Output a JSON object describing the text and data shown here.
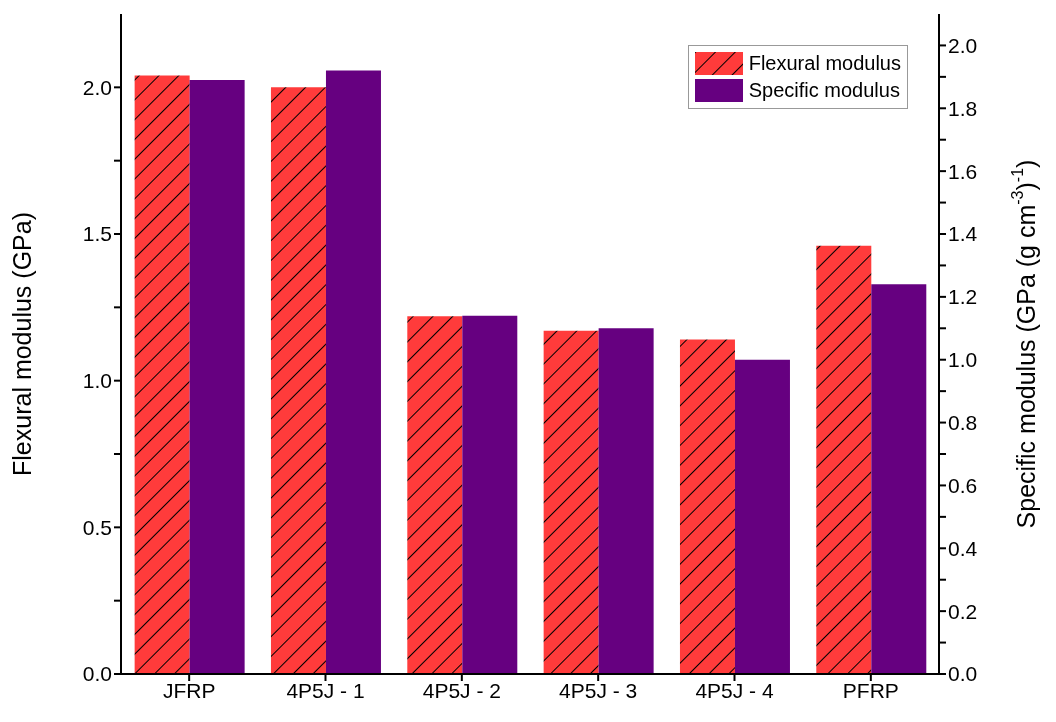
{
  "chart_data": {
    "type": "bar",
    "categories": [
      "JFRP",
      "4P5J - 1",
      "4P5J - 2",
      "4P5J - 3",
      "4P5J - 4",
      "PFRP"
    ],
    "ylabel": "Flexural modulus (GPa)",
    "y2label": "Specific modulus (GPa (g cm$^{-3}$)$^{-1}$)",
    "series": [
      {
        "name": "Flexural modulus",
        "color": "#ff3b3b",
        "values": [
          2.04,
          2.0,
          1.22,
          1.17,
          1.14,
          1.46
        ]
      },
      {
        "name": "Specific modulus",
        "color": "#660080",
        "axis": "y2",
        "values": [
          1.89,
          1.92,
          1.14,
          1.1,
          1.0,
          1.24
        ]
      }
    ],
    "ylim": [
      0,
      2.25
    ],
    "yticks": [
      {
        "value": 0,
        "label": "0.0"
      },
      {
        "value": 0.25,
        "label": null
      },
      0.5,
      {
        "value": 0.75,
        "label": null
      },
      {
        "value": 1,
        "label": "1.0"
      },
      {
        "value": 1.25,
        "label": null
      },
      1.5,
      {
        "value": 1.75,
        "label": null
      },
      {
        "value": 2,
        "label": "2.0"
      }
    ],
    "y2lim": [
      0,
      2.1
    ],
    "y2ticks": [
      {
        "value": 0,
        "label": "0.0"
      },
      {
        "value": 0.1,
        "label": null
      },
      0.2,
      {
        "value": 0.3,
        "label": null
      },
      0.4,
      {
        "value": 0.5,
        "label": null
      },
      0.6,
      {
        "value": 0.7,
        "label": null
      },
      0.8,
      {
        "value": 0.9,
        "label": null
      },
      {
        "value": 1,
        "label": "1.0"
      },
      {
        "value": 1.1,
        "label": null
      },
      1.2,
      {
        "value": 1.3,
        "label": null
      },
      1.4,
      {
        "value": 1.5,
        "label": null
      },
      1.6,
      {
        "value": 1.7,
        "label": null
      },
      1.8,
      {
        "value": 1.9,
        "label": null
      },
      {
        "value": 2,
        "label": "2.0"
      }
    ],
    "legend": "top right"
  }
}
